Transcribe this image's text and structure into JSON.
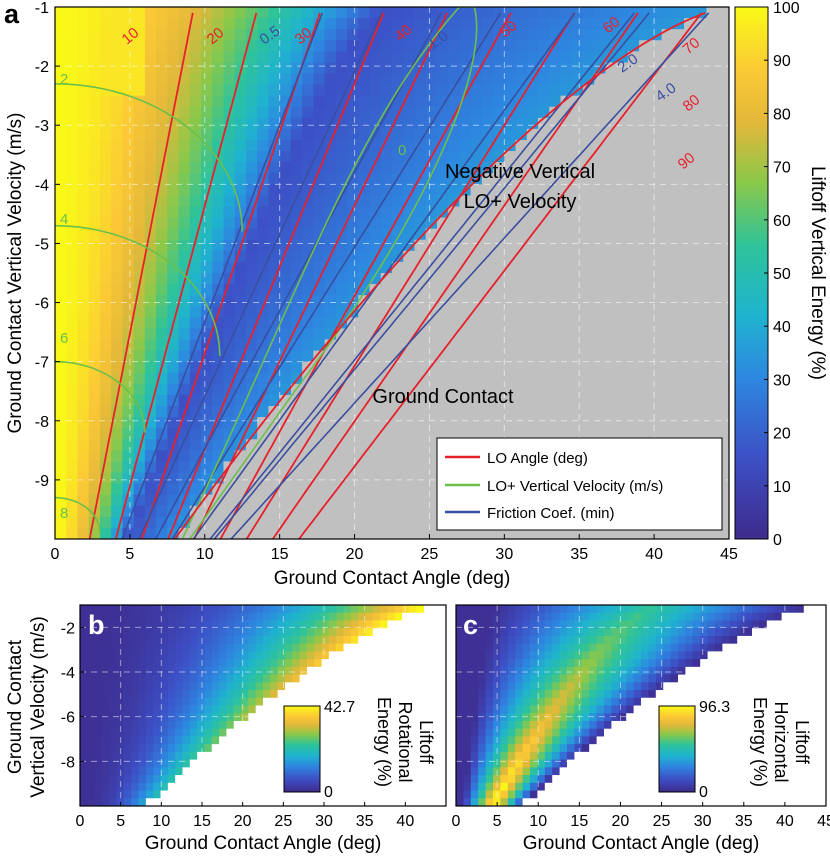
{
  "chart_data": [
    {
      "panel": "a",
      "type": "heatmap",
      "xlabel": "Ground Contact Angle (deg)",
      "ylabel": "Ground Contact Vertical Velocity (m/s)",
      "colorbar_label": "Liftoff Vertical Energy (%)",
      "xlim": [
        0,
        45
      ],
      "ylim": [
        -10,
        -1
      ],
      "xticks": [
        "0",
        "5",
        "10",
        "15",
        "20",
        "25",
        "30",
        "35",
        "40",
        "45"
      ],
      "yticks": [
        "-1",
        "-2",
        "-3",
        "-4",
        "-5",
        "-6",
        "-7",
        "-8",
        "-9"
      ],
      "colorbar_ticks": [
        "0",
        "10",
        "20",
        "30",
        "40",
        "50",
        "60",
        "70",
        "80",
        "90",
        "100"
      ],
      "colorbar_range": [
        0,
        100
      ],
      "grid": true,
      "legend_position": "bottom-right",
      "legend": [
        {
          "label": "LO Angle (deg)",
          "color": "#e8202a"
        },
        {
          "label": "LO+ Vertical Velocity (m/s)",
          "color": "#6cc04a"
        },
        {
          "label": "Friction Coef. (min)",
          "color": "#3a4ea0"
        }
      ],
      "annotations": [
        "Negative Vertical",
        "LO+ Velocity",
        "Ground Contact"
      ],
      "series": [
        {
          "name": "LO Angle (deg)",
          "contour_levels": [
            "10",
            "20",
            "30",
            "40",
            "50",
            "60",
            "70",
            "80",
            "90"
          ]
        },
        {
          "name": "LO+ Vertical Velocity (m/s)",
          "contour_levels": [
            "0",
            "2",
            "4",
            "6",
            "8"
          ]
        },
        {
          "name": "Friction Coef. (min)",
          "contour_levels": [
            "0.5",
            "1.0",
            "2.0",
            "4.0"
          ]
        }
      ]
    },
    {
      "panel": "b",
      "type": "heatmap",
      "xlabel": "Ground Contact Angle (deg)",
      "ylabel_line1": "Ground Contact",
      "ylabel_line2": "Vertical Velocity (m/s)",
      "colorbar_label_lines": [
        "Liftoff",
        "Rotational",
        "Energy (%)"
      ],
      "colorbar_max": "42.7",
      "colorbar_min": "0",
      "xlim": [
        0,
        45
      ],
      "ylim": [
        -10,
        -1
      ],
      "xticks": [
        "0",
        "5",
        "10",
        "15",
        "20",
        "25",
        "30",
        "35",
        "40"
      ],
      "yticks": [
        "-2",
        "-4",
        "-6",
        "-8"
      ],
      "grid": true
    },
    {
      "panel": "c",
      "type": "heatmap",
      "xlabel": "Ground Contact Angle (deg)",
      "colorbar_label_lines": [
        "Liftoff",
        "Horizontal",
        "Energy (%)"
      ],
      "colorbar_max": "96.3",
      "colorbar_min": "0",
      "xlim": [
        0,
        45
      ],
      "ylim": [
        -10,
        -1
      ],
      "xticks": [
        "0",
        "5",
        "10",
        "15",
        "20",
        "25",
        "30",
        "35",
        "40",
        "45"
      ],
      "grid": true
    }
  ],
  "panel_letters": {
    "a": "a",
    "b": "b",
    "c": "c"
  }
}
